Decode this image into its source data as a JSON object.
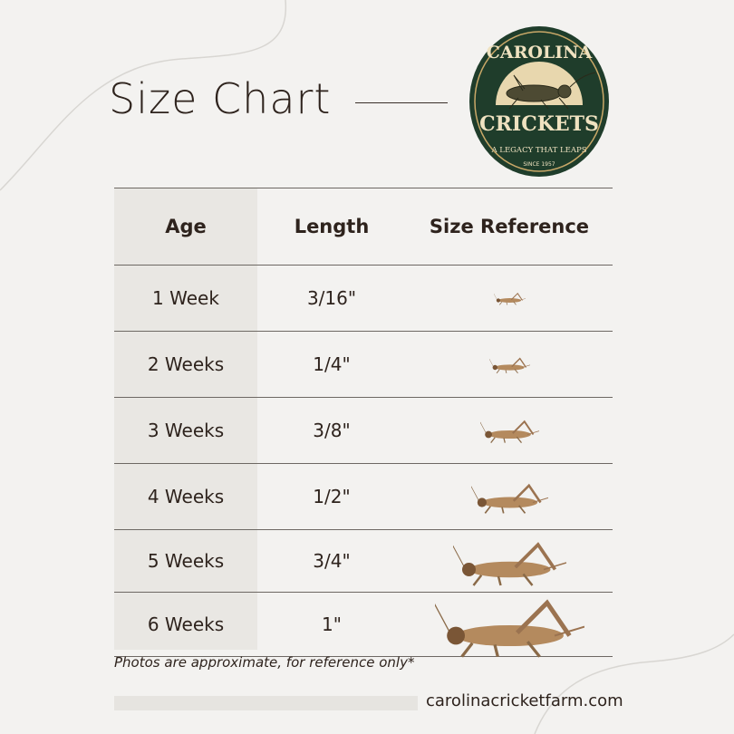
{
  "title": "Size Chart",
  "logo": {
    "top_text": "CAROLINA",
    "main_text": "CRICKETS",
    "tagline": "A LEGACY THAT LEAPS",
    "since": "SINCE 1957",
    "colors": {
      "green": "#1f3d2b",
      "cream": "#efe2c0"
    }
  },
  "table": {
    "headers": [
      "Age",
      "Length",
      "Size Reference"
    ],
    "rows": [
      {
        "age": "1 Week",
        "length": "3/16\"",
        "size_in": 0.1875
      },
      {
        "age": "2 Weeks",
        "length": "1/4\"",
        "size_in": 0.25
      },
      {
        "age": "3 Weeks",
        "length": "3/8\"",
        "size_in": 0.375
      },
      {
        "age": "4 Weeks",
        "length": "1/2\"",
        "size_in": 0.5
      },
      {
        "age": "5 Weeks",
        "length": "3/4\"",
        "size_in": 0.75
      },
      {
        "age": "6 Weeks",
        "length": "1\"",
        "size_in": 1
      }
    ]
  },
  "note": "Photos are approximate, for reference only*",
  "website": "carolinacricketfarm.com"
}
